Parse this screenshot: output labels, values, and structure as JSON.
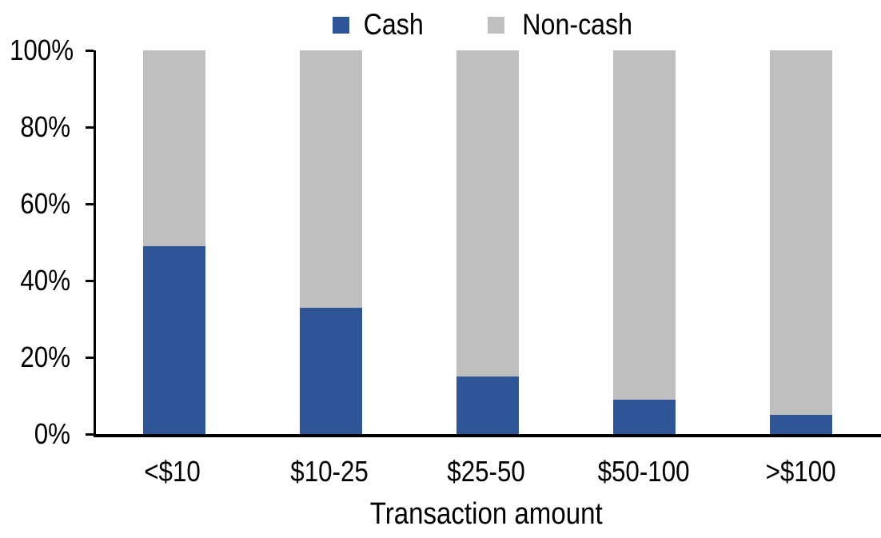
{
  "chart_data": {
    "type": "bar",
    "stacked": true,
    "title": "",
    "xlabel": "Transaction amount",
    "ylabel": "",
    "categories": [
      "<$10",
      "$10-25",
      "$25-50",
      "$50-100",
      ">$100"
    ],
    "series": [
      {
        "name": "Cash",
        "color": "#2F5596",
        "values": [
          49,
          33,
          15,
          9,
          5
        ]
      },
      {
        "name": "Non-cash",
        "color": "#BFBFBF",
        "values": [
          51,
          67,
          85,
          91,
          95
        ]
      }
    ],
    "ylim": [
      0,
      100
    ],
    "ytick_labels": [
      "0%",
      "20%",
      "40%",
      "60%",
      "80%",
      "100%"
    ],
    "grid": false,
    "legend_position": "top-center",
    "axis_color": "#000000",
    "background": "#FFFFFF"
  }
}
